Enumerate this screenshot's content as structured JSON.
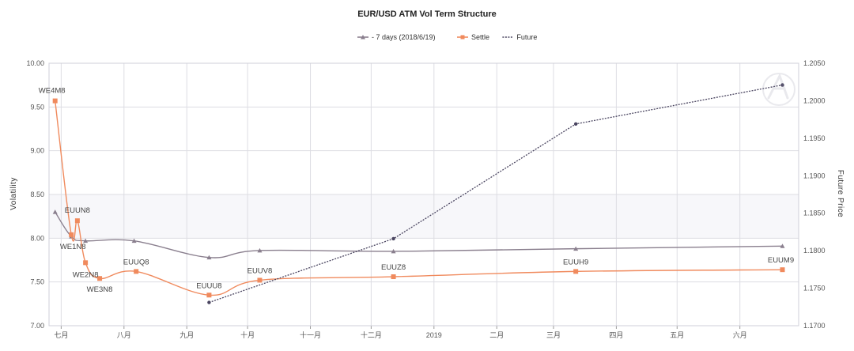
{
  "chart_data": {
    "type": "line",
    "title": "EUR/USD ATM Vol Term Structure",
    "ylabel": "Volatility",
    "y2label": "Future Price",
    "ylim": [
      7.0,
      10.0
    ],
    "y2lim": [
      1.17,
      1.205
    ],
    "yticks": [
      "7.00",
      "7.50",
      "8.00",
      "8.50",
      "9.00",
      "9.50",
      "10.00"
    ],
    "y2ticks": [
      "1.1700",
      "1.1750",
      "1.1800",
      "1.1850",
      "1.1900",
      "1.1950",
      "1.2000",
      "1.2050"
    ],
    "xlim": [
      "2018-06-25",
      "2019-06-30"
    ],
    "xticks": [
      {
        "date": "2018-07-01",
        "label": "七月"
      },
      {
        "date": "2018-08-01",
        "label": "八月"
      },
      {
        "date": "2018-09-01",
        "label": "九月"
      },
      {
        "date": "2018-10-01",
        "label": "十月"
      },
      {
        "date": "2018-11-01",
        "label": "十一月"
      },
      {
        "date": "2018-12-01",
        "label": "十二月"
      },
      {
        "date": "2019-01-01",
        "label": "2019"
      },
      {
        "date": "2019-02-01",
        "label": "二月"
      },
      {
        "date": "2019-03-01",
        "label": "三月"
      },
      {
        "date": "2019-04-01",
        "label": "四月"
      },
      {
        "date": "2019-05-01",
        "label": "五月"
      },
      {
        "date": "2019-06-01",
        "label": "六月"
      }
    ],
    "grid": true,
    "legend_position": "top-center",
    "series": [
      {
        "name": "- 7 days (2018/6/19)",
        "axis": "left",
        "color": "#8a7f8e",
        "marker": "triangle",
        "points": [
          {
            "x": "2018-06-28",
            "y": 8.3
          },
          {
            "x": "2018-07-06",
            "y": 8.02
          },
          {
            "x": "2018-07-13",
            "y": 7.97
          },
          {
            "x": "2018-08-06",
            "y": 7.97
          },
          {
            "x": "2018-09-12",
            "y": 7.78
          },
          {
            "x": "2018-10-07",
            "y": 7.86
          },
          {
            "x": "2018-12-12",
            "y": 7.85
          },
          {
            "x": "2019-03-12",
            "y": 7.88
          },
          {
            "x": "2019-06-22",
            "y": 7.91
          }
        ]
      },
      {
        "name": "Settle",
        "axis": "left",
        "color": "#f08a5d",
        "marker": "square",
        "points": [
          {
            "x": "2018-06-28",
            "y": 9.57,
            "label": "WE4M8"
          },
          {
            "x": "2018-07-06",
            "y": 8.04,
            "label": "WE1N8"
          },
          {
            "x": "2018-07-09",
            "y": 8.2,
            "label": "EUUN8"
          },
          {
            "x": "2018-07-13",
            "y": 7.72,
            "label": "WE2N8"
          },
          {
            "x": "2018-07-20",
            "y": 7.54,
            "label": "WE3N8"
          },
          {
            "x": "2018-08-07",
            "y": 7.62,
            "label": "EUUQ8"
          },
          {
            "x": "2018-09-12",
            "y": 7.35,
            "label": "EUUU8"
          },
          {
            "x": "2018-10-07",
            "y": 7.52,
            "label": "EUUV8"
          },
          {
            "x": "2018-12-12",
            "y": 7.56,
            "label": "EUUZ8"
          },
          {
            "x": "2019-03-12",
            "y": 7.62,
            "label": "EUUH9"
          },
          {
            "x": "2019-06-22",
            "y": 7.64,
            "label": "EUUM9"
          }
        ]
      },
      {
        "name": "Future",
        "axis": "right",
        "color": "#4a4560",
        "marker": "dot",
        "points": [
          {
            "x": "2018-09-12",
            "y": 1.1731
          },
          {
            "x": "2018-12-12",
            "y": 1.1816
          },
          {
            "x": "2019-03-12",
            "y": 1.1969
          },
          {
            "x": "2019-06-22",
            "y": 1.2021
          }
        ]
      }
    ]
  }
}
